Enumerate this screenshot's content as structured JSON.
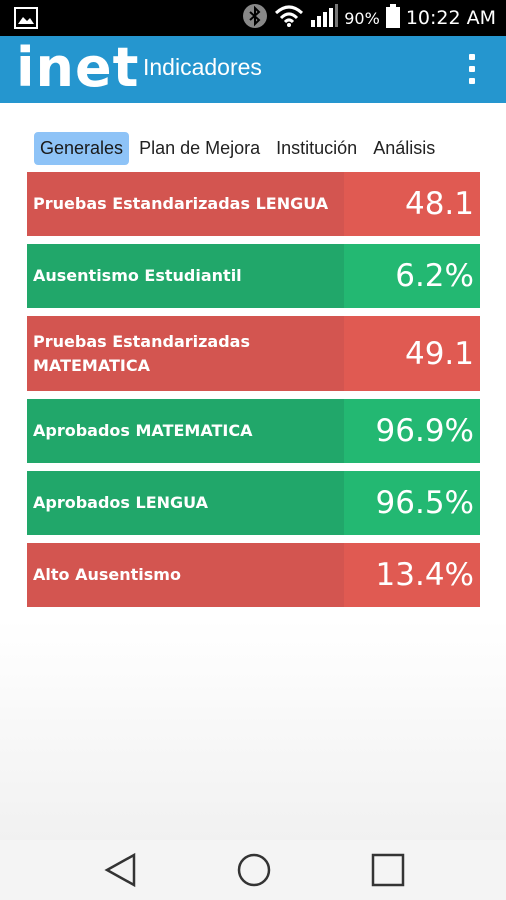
{
  "status_bar": {
    "battery_percent": "90%",
    "time": "10:22 AM",
    "icons": [
      "image-icon",
      "bluetooth-icon",
      "wifi-icon",
      "signal-icon",
      "battery-icon"
    ]
  },
  "app_bar": {
    "logo": "inet",
    "title": "Indicadores",
    "menu_icon": "overflow-menu-icon"
  },
  "tabs": [
    {
      "label": "Generales",
      "active": true
    },
    {
      "label": "Plan de Mejora",
      "active": false
    },
    {
      "label": "Institución",
      "active": false
    },
    {
      "label": "Análisis",
      "active": false
    }
  ],
  "indicators": [
    {
      "label": "Pruebas Estandarizadas LENGUA",
      "value": "48.1",
      "status": "bad"
    },
    {
      "label": "Ausentismo Estudiantil",
      "value": "6.2%",
      "status": "good"
    },
    {
      "label": "Pruebas Estandarizadas MATEMATICA",
      "value": "49.1",
      "status": "bad"
    },
    {
      "label": "Aprobados MATEMATICA",
      "value": "96.9%",
      "status": "good"
    },
    {
      "label": "Aprobados LENGUA",
      "value": "96.5%",
      "status": "good"
    },
    {
      "label": "Alto Ausentismo",
      "value": "13.4%",
      "status": "bad"
    }
  ],
  "colors": {
    "app_bar": "#2596cf",
    "tab_active": "#8ec3f7",
    "bad_label": "#d35550",
    "bad_value": "#e05a52",
    "good_label": "#21a76a",
    "good_value": "#23b872"
  },
  "nav_bar": {
    "icons": [
      "back-icon",
      "home-icon",
      "recents-icon"
    ]
  }
}
